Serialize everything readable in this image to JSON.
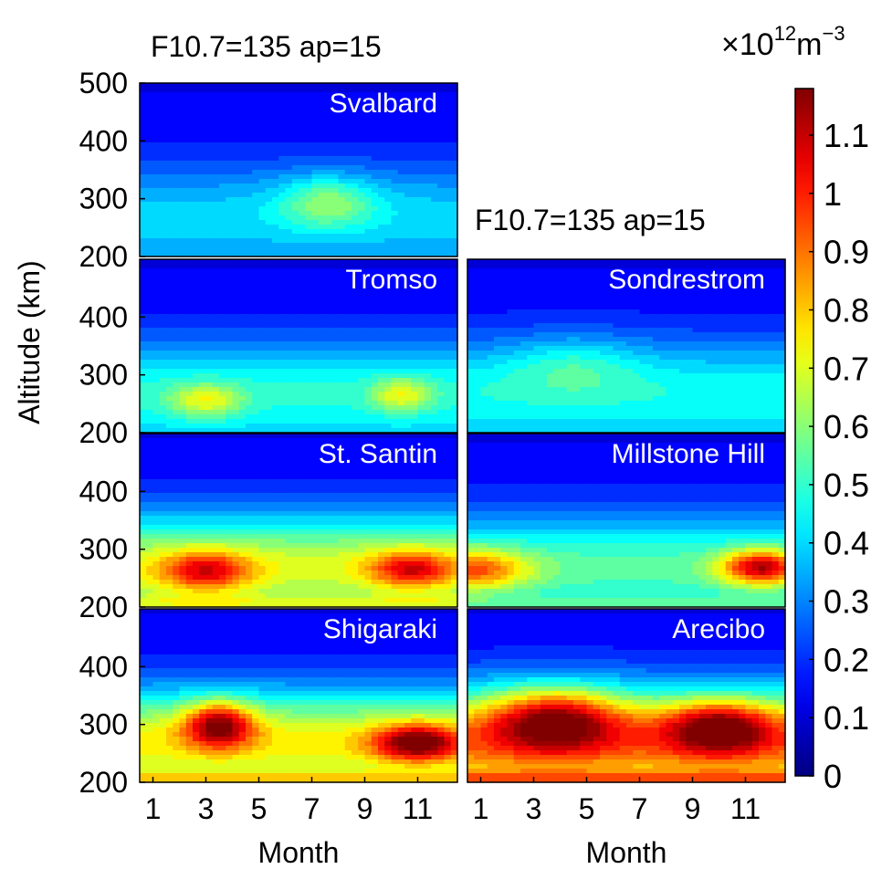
{
  "figure": {
    "header_left": "F10.7=135  ap=15",
    "header_right": "F10.7=135  ap=15",
    "unit_label": "×10",
    "unit_exp": "12",
    "unit_tail": "m",
    "unit_exp2": "−3",
    "ylabel": "Altitude (km)",
    "xlabel": "Month"
  },
  "chart_data": {
    "type": "heatmap",
    "description_free": true,
    "x_ticks": [
      "1",
      "3",
      "5",
      "7",
      "9",
      "11"
    ],
    "x_range": [
      0.5,
      12.5
    ],
    "y_ticks": [
      "200",
      "300",
      "400",
      "500"
    ],
    "y_range": [
      200,
      500
    ],
    "colorbar": {
      "ticks": [
        "0",
        "0.1",
        "0.2",
        "0.3",
        "0.4",
        "0.5",
        "0.6",
        "0.7",
        "0.8",
        "0.9",
        "1",
        "1.1"
      ],
      "range": [
        0,
        1.18
      ],
      "colormap": "jet"
    },
    "panels": [
      {
        "name": "Svalbard",
        "peaks": [
          {
            "month": 7.6,
            "alt": 295,
            "value": 0.37,
            "sx": 1.8,
            "sy": 45
          }
        ],
        "base": {
          "bottom": 0.2,
          "low": 0.22,
          "top": 0.16
        }
      },
      {
        "name": "Tromso",
        "peaks": [
          {
            "month": 3.0,
            "alt": 255,
            "value": 0.43,
            "sx": 1.4,
            "sy": 30
          },
          {
            "month": 10.4,
            "alt": 265,
            "value": 0.43,
            "sx": 1.1,
            "sy": 30
          }
        ],
        "base": {
          "bottom": 0.22,
          "low": 0.3,
          "top": 0.17
        }
      },
      {
        "name": "Sondrestrom",
        "peaks": [
          {
            "month": 4.5,
            "alt": 320,
            "value": 0.3,
            "sx": 2.5,
            "sy": 50
          }
        ],
        "base": {
          "bottom": 0.22,
          "low": 0.28,
          "top": 0.18
        }
      },
      {
        "name": "St. Santin",
        "peaks": [
          {
            "month": 3.0,
            "alt": 262,
            "value": 0.7,
            "sx": 1.7,
            "sy": 35
          },
          {
            "month": 10.8,
            "alt": 265,
            "value": 0.7,
            "sx": 1.6,
            "sy": 32
          }
        ],
        "base": {
          "bottom": 0.4,
          "low": 0.5,
          "top": 0.2
        }
      },
      {
        "name": "Millstone Hill",
        "peaks": [
          {
            "month": 0.8,
            "alt": 265,
            "value": 0.62,
            "sx": 2.0,
            "sy": 35
          },
          {
            "month": 11.6,
            "alt": 268,
            "value": 0.8,
            "sx": 1.5,
            "sy": 30
          }
        ],
        "base": {
          "bottom": 0.32,
          "low": 0.36,
          "top": 0.17
        }
      },
      {
        "name": "Shigaraki",
        "peaks": [
          {
            "month": 3.5,
            "alt": 300,
            "value": 0.87,
            "sx": 1.3,
            "sy": 40
          },
          {
            "month": 11.0,
            "alt": 268,
            "value": 0.87,
            "sx": 1.6,
            "sy": 32
          }
        ],
        "base": {
          "bottom": 0.45,
          "low": 0.55,
          "top": 0.2
        }
      },
      {
        "name": "Arecibo",
        "peaks": [
          {
            "month": 3.8,
            "alt": 310,
            "value": 0.9,
            "sx": 2.4,
            "sy": 55
          },
          {
            "month": 10.0,
            "alt": 295,
            "value": 0.89,
            "sx": 2.0,
            "sy": 45
          }
        ],
        "base": {
          "bottom": 0.5,
          "low": 0.68,
          "top": 0.25
        }
      }
    ]
  }
}
